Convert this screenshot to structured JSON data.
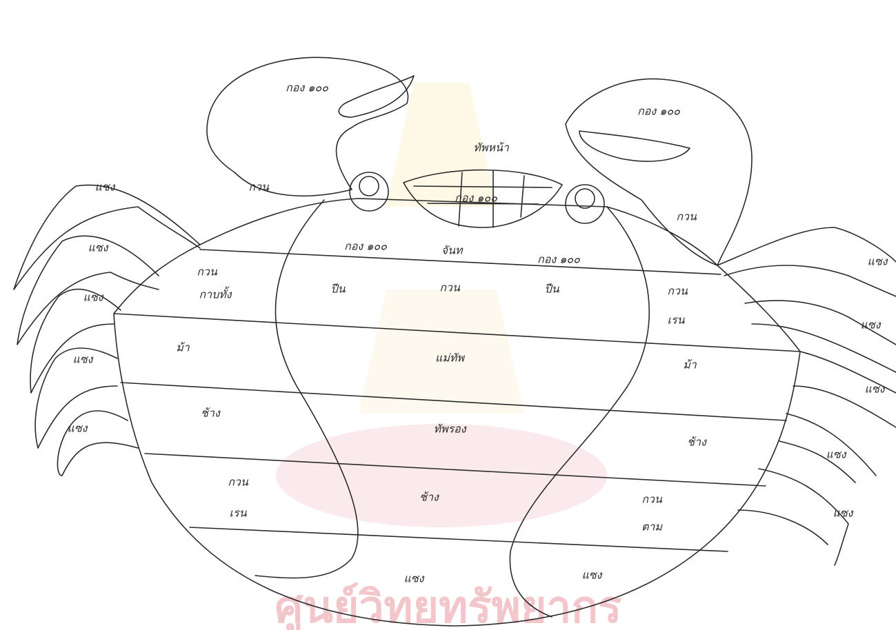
{
  "labels": [
    "กอง ๑๐๐",
    "กอง ๑๐๐",
    "ทัพหน้า",
    "กอง ๑๐๐",
    "กวน",
    "กวน",
    "กอง ๑๐๐",
    "จันท",
    "กอง ๑๐๐",
    "กวน",
    "กาบทั้ง",
    "ปีน",
    "กวน",
    "ปีน",
    "กวน",
    "เรน",
    "ม้า",
    "แม่ทัพ",
    "ม้า",
    "ช้าง",
    "ทัพรอง",
    "ช้าง",
    "กวน",
    "เรน",
    "ช้าง",
    "กวน",
    "ตาม",
    "แซง",
    "แซง",
    "แซง",
    "แซง",
    "แซง",
    "แซง",
    "แซง",
    "แซง",
    "แซง",
    "แซง",
    "แซง",
    "แซง"
  ],
  "watermark": "ศูนย์วิทยทรัพยากร"
}
